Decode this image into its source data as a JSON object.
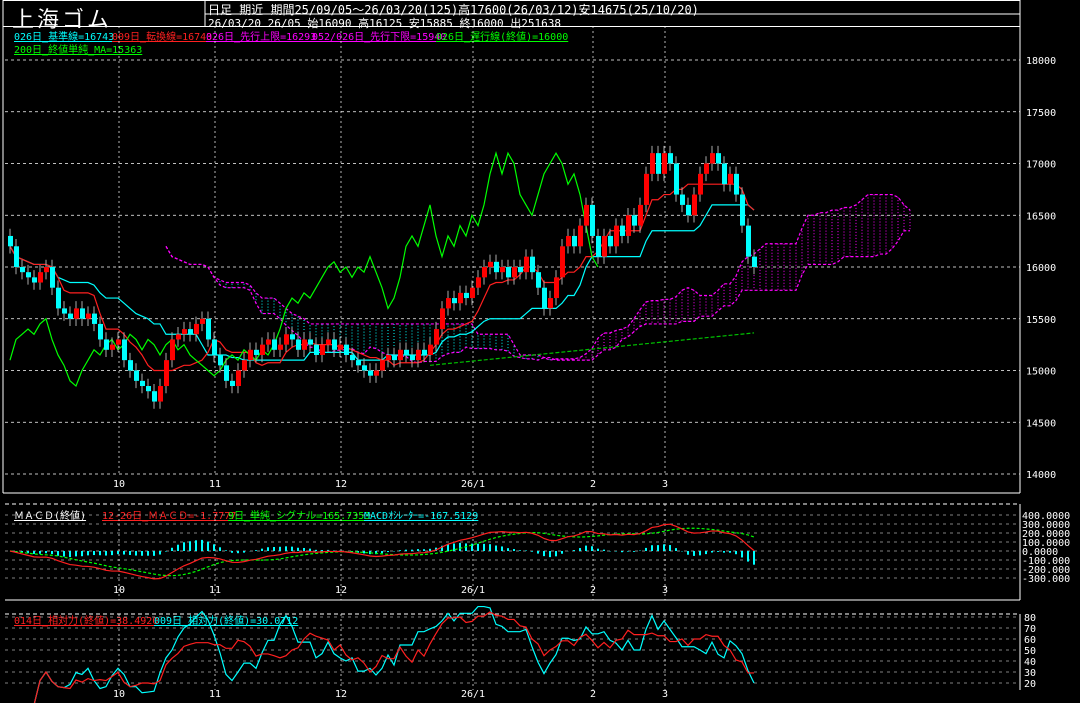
{
  "title": "上海ゴム",
  "header": {
    "line1": "日足 期近 期間25/09/05～26/03/20(125)高17600(26/03/12)安14675(25/10/20)",
    "line2": "26/03/20 26/05 始16090 高16125 安15885 終16000 出251638"
  },
  "legend_main": [
    {
      "text": "026日_基準線=16743",
      "color": "#00ffff"
    },
    {
      "text": "009日_転換線=16743",
      "color": "#ff2020"
    },
    {
      "text": "026日_先行上限=16293",
      "color": "#ff00ff"
    },
    {
      "text": "052/026日_先行下限=15940",
      "color": "#ff00ff"
    },
    {
      "text": "026日_遅行線(終値)=16000",
      "color": "#00ff00"
    },
    {
      "text": "200日_終値単純_MA=15363",
      "color": "#00ff00"
    }
  ],
  "legend_macd": [
    {
      "text": "ＭＡＣＤ(終値)",
      "color": "#ffffff"
    },
    {
      "text": "12-26日_ＭＡＣＤ=-1.7777",
      "color": "#ff2020"
    },
    {
      "text": "9日_単純_シグナル=165.7353",
      "color": "#00ff00"
    },
    {
      "text": "MACDｵｼﾚｰﾀｰ=-167.5129",
      "color": "#00ffff"
    }
  ],
  "legend_rsi": [
    {
      "text": "014日_相対力(終値)=38.4920",
      "color": "#ff2020"
    },
    {
      "text": "009日_相対力(終値)=30.0712",
      "color": "#00ffff"
    }
  ],
  "colors": {
    "up": "#ff0000",
    "down": "#00ffff",
    "kijun": "#00ffff",
    "tenkan": "#ff2020",
    "span": "#ff00ff",
    "lagging": "#00ff00",
    "grid": "#ffffff"
  },
  "chart_data": {
    "type": "candlestick",
    "period": "25/09/05～26/03/20",
    "x_ticks": [
      {
        "label": "10",
        "index": 18
      },
      {
        "label": "11",
        "index": 34
      },
      {
        "label": "12",
        "index": 55
      },
      {
        "label": "26/1",
        "index": 77
      },
      {
        "label": "2",
        "index": 97
      },
      {
        "label": "3",
        "index": 109
      }
    ],
    "y_ticks": [
      18000,
      17500,
      17000,
      16500,
      16000,
      15500,
      15000,
      14500,
      14000
    ],
    "ylim": [
      14000,
      18000
    ],
    "closes": [
      16200,
      16000,
      15950,
      15900,
      15850,
      15950,
      16000,
      15800,
      15600,
      15550,
      15500,
      15600,
      15500,
      15550,
      15450,
      15300,
      15200,
      15250,
      15300,
      15100,
      15000,
      14900,
      14850,
      14800,
      14700,
      14850,
      15100,
      15300,
      15350,
      15400,
      15350,
      15450,
      15500,
      15300,
      15150,
      15050,
      14900,
      14850,
      15000,
      15100,
      15200,
      15150,
      15250,
      15300,
      15200,
      15250,
      15350,
      15300,
      15200,
      15300,
      15250,
      15150,
      15250,
      15300,
      15200,
      15250,
      15150,
      15100,
      15050,
      15000,
      14950,
      15000,
      15100,
      15150,
      15100,
      15200,
      15150,
      15100,
      15200,
      15150,
      15250,
      15400,
      15600,
      15700,
      15650,
      15750,
      15700,
      15800,
      15900,
      16000,
      16050,
      15950,
      16000,
      15900,
      16000,
      15950,
      16100,
      15950,
      15800,
      15600,
      15700,
      15900,
      16200,
      16300,
      16200,
      16400,
      16600,
      16300,
      16100,
      16300,
      16200,
      16400,
      16300,
      16500,
      16400,
      16600,
      16900,
      17100,
      16900,
      17100,
      17000,
      16700,
      16600,
      16500,
      16700,
      16900,
      17000,
      17100,
      17000,
      16800,
      16900,
      16700,
      16400,
      16100,
      16000
    ],
    "first_open": 16300,
    "macd": {
      "y_ticks": [
        "400.0000",
        "300.0000",
        "200.0000",
        "100.0000",
        "0.0000",
        "-100.000",
        "-200.000",
        "-300.000"
      ],
      "ylim": [
        -300,
        400
      ]
    },
    "rsi": {
      "y_ticks": [
        "80",
        "70",
        "60",
        "50",
        "40",
        "30",
        "20"
      ],
      "ylim": [
        20,
        80
      ]
    }
  }
}
